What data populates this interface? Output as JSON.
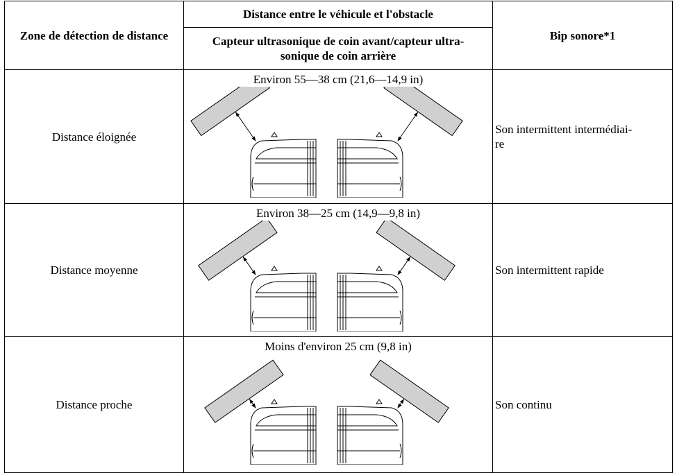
{
  "header": {
    "zone": "Zone de détection de distance",
    "distance": "Distance entre le véhicule et l'obstacle",
    "sensor": "Capteur ultrasonique de coin avant/capteur ultra-\nsonique de coin arrière",
    "beep": "Bip sonore*1"
  },
  "rows": [
    {
      "zone": "Distance éloignée",
      "range": "Environ 55—38 cm (21,6—14,9 in)",
      "beep": "Son intermittent intermédiai-\nre"
    },
    {
      "zone": "Distance moyenne",
      "range": "Environ 38—25 cm (14,9—9,8 in)",
      "beep": "Son intermittent rapide"
    },
    {
      "zone": "Distance proche",
      "range": "Moins d'environ 25 cm (9,8 in)",
      "beep": "Son continu"
    }
  ]
}
